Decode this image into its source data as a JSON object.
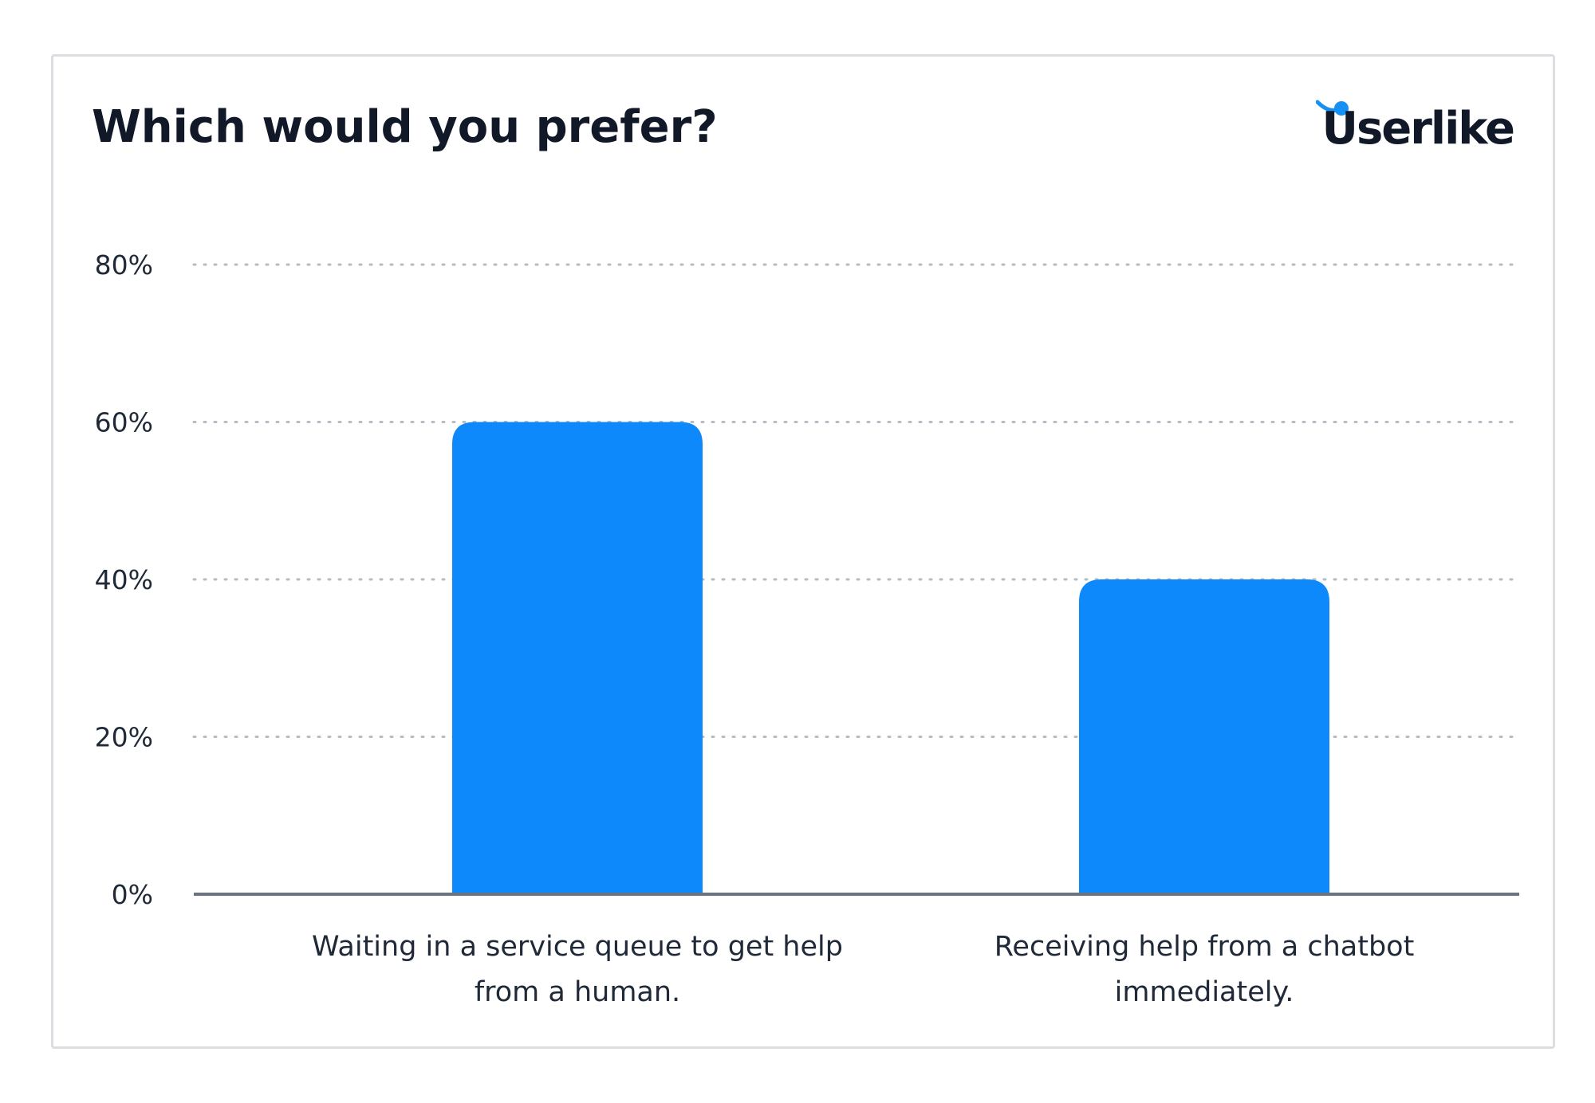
{
  "chart_data": {
    "type": "bar",
    "title": "Which would you prefer?",
    "categories": [
      "Waiting in a service queue to get help from a human.",
      "Receiving help from a chatbot immediately."
    ],
    "values": [
      60,
      40
    ],
    "ylim": [
      0,
      80
    ],
    "yticks": [
      0,
      20,
      40,
      60,
      80
    ],
    "ytick_labels": [
      "0%",
      "20%",
      "40%",
      "60%",
      "80%"
    ],
    "xlabel": "",
    "ylabel": "",
    "grid": true,
    "bar_color": "#0d89fb",
    "gridline_color": "#b6bbc4",
    "axis_color": "#6b7280"
  },
  "branding": {
    "logo_text": "Userlike",
    "accent_color": "#1591f5"
  }
}
